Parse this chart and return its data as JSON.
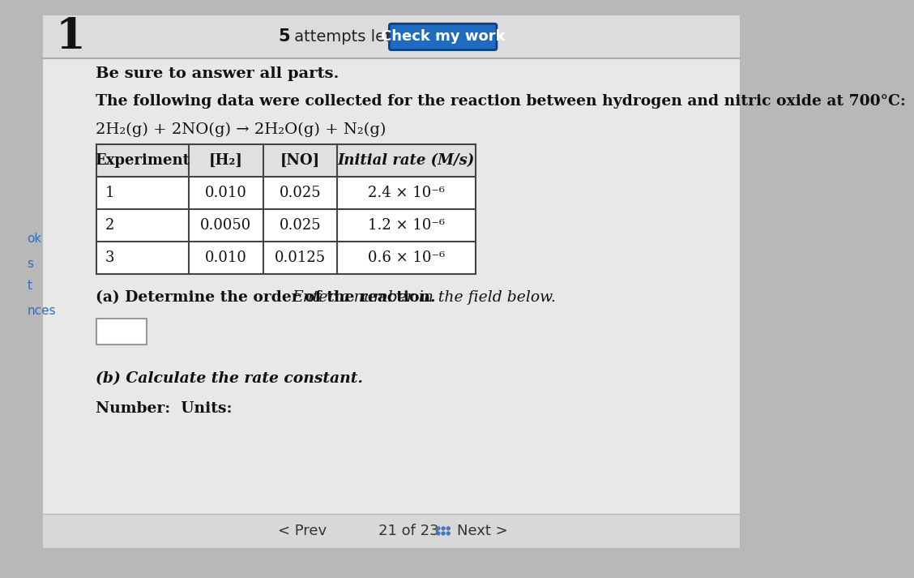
{
  "question_number": "1",
  "attempts_bold": "5",
  "attempts_rest": " attempts left",
  "check_button_text": "Check my work",
  "check_button_color": "#1e6bbf",
  "preamble": "Be sure to answer all parts.",
  "problem_intro": "The following data were collected for the reaction between hydrogen and nitric oxide at 700°C:",
  "reaction": "2H₂(g) + 2NO(g) → 2H₂O(g) + N₂(g)",
  "table_headers": [
    "Experiment",
    "[H₂]",
    "[NO]",
    "Initial rate (M/s)"
  ],
  "table_rows": [
    [
      "1",
      "0.010",
      "0.025",
      "2.4 × 10⁻⁶"
    ],
    [
      "2",
      "0.0050",
      "0.025",
      "1.2 × 10⁻⁶"
    ],
    [
      "3",
      "0.010",
      "0.0125",
      "0.6 × 10⁻⁶"
    ]
  ],
  "part_a_normal": "(a) Determine the order of the reaction. ",
  "part_a_italic": "Enter a number in the field below.",
  "part_b": "(b) Calculate the rate constant.",
  "number_units": "Number:  Units:",
  "nav_prev": "< Prev",
  "nav_text": "21 of 23",
  "nav_next": "Next >",
  "sidebar_items": [
    "ok",
    "s",
    "t",
    "nces"
  ],
  "sidebar_color": "#2a6fc4",
  "bg_outer": "#b8b8b8",
  "bg_main": "#e8e8e8",
  "bg_top_bar": "#dcdcdc",
  "bg_bottom_bar": "#d8d8d8",
  "text_color": "#111111"
}
